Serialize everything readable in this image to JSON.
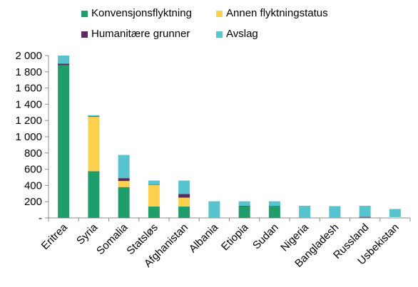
{
  "chart_data": {
    "type": "bar",
    "stacked": true,
    "title": "",
    "xlabel": "",
    "ylabel": "",
    "ylim": [
      0,
      2000
    ],
    "yticks": [
      0,
      200,
      400,
      600,
      800,
      1000,
      1200,
      1400,
      1600,
      1800,
      2000
    ],
    "ytick_labels": [
      "-",
      "200",
      "400",
      "600",
      "800",
      "1 000",
      "1 200",
      "1 400",
      "1 600",
      "1 800",
      "2 000"
    ],
    "grid": false,
    "legend_position": "top",
    "categories": [
      "Eritrea",
      "Syria",
      "Somalia",
      "Statsløs",
      "Afghanistan",
      "Albania",
      "Etiopia",
      "Sudan",
      "Nigeria",
      "Bangladesh",
      "Russland",
      "Usbekistan"
    ],
    "series": [
      {
        "name": "Konvensjonsflyktning",
        "color": "#1f9d6a",
        "values": [
          1880,
          575,
          380,
          140,
          140,
          0,
          145,
          140,
          0,
          0,
          10,
          0
        ]
      },
      {
        "name": "Annen flyktningstatus",
        "color": "#fdd04f",
        "values": [
          0,
          670,
          75,
          265,
          110,
          0,
          0,
          0,
          0,
          0,
          0,
          10
        ]
      },
      {
        "name": "Humanitære grunner",
        "color": "#5b2a5e",
        "values": [
          20,
          5,
          35,
          5,
          45,
          0,
          5,
          5,
          0,
          0,
          5,
          0
        ]
      },
      {
        "name": "Avslag",
        "color": "#57c3cf",
        "values": [
          100,
          15,
          285,
          50,
          165,
          205,
          55,
          60,
          150,
          145,
          135,
          100
        ]
      }
    ]
  }
}
